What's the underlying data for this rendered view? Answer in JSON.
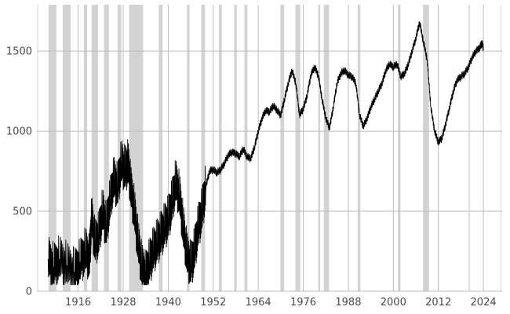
{
  "chart_data": {
    "type": "line",
    "title": "",
    "xlabel": "",
    "ylabel": "",
    "xlim": [
      1905,
      2029
    ],
    "ylim": [
      0,
      1790
    ],
    "grid": true,
    "x_ticks": [
      "1916",
      "1928",
      "1940",
      "1952",
      "1964",
      "1976",
      "1988",
      "2000",
      "2012",
      "2024"
    ],
    "y_ticks": [
      "0",
      "500",
      "1000",
      "1500"
    ],
    "shaded_periods": [
      [
        1908.1,
        1910.2
      ],
      [
        1911.9,
        1914.0
      ],
      [
        1917.5,
        1918.4
      ],
      [
        1919.6,
        1921.3
      ],
      [
        1922.9,
        1924.2
      ],
      [
        1926.5,
        1927.5
      ],
      [
        1929.6,
        1933.3
      ],
      [
        1937.5,
        1938.5
      ],
      [
        1945.0,
        1945.7
      ],
      [
        1948.8,
        1949.8
      ],
      [
        1953.5,
        1954.3
      ],
      [
        1957.6,
        1958.3
      ],
      [
        1960.3,
        1961.1
      ],
      [
        1969.9,
        1970.9
      ],
      [
        1973.9,
        1975.2
      ],
      [
        1980.0,
        1980.5
      ],
      [
        1981.5,
        1982.9
      ],
      [
        1990.5,
        1991.2
      ],
      [
        2001.2,
        2001.9
      ],
      [
        2007.9,
        2009.5
      ],
      [
        2020.1,
        2020.4
      ]
    ],
    "series": [
      {
        "name": "",
        "color": "#000000",
        "points": [
          [
            1908.0,
            200
          ],
          [
            1909.5,
            150
          ],
          [
            1911.0,
            200
          ],
          [
            1913.0,
            160
          ],
          [
            1915.0,
            120
          ],
          [
            1916.5,
            180
          ],
          [
            1918.0,
            250
          ],
          [
            1919.0,
            200
          ],
          [
            1919.6,
            460
          ],
          [
            1920.5,
            300
          ],
          [
            1921.5,
            350
          ],
          [
            1922.5,
            500
          ],
          [
            1923.5,
            400
          ],
          [
            1924.5,
            560
          ],
          [
            1925.5,
            700
          ],
          [
            1926.5,
            650
          ],
          [
            1927.5,
            800
          ],
          [
            1928.5,
            760
          ],
          [
            1929.3,
            800
          ],
          [
            1930.0,
            650
          ],
          [
            1931.0,
            500
          ],
          [
            1932.0,
            300
          ],
          [
            1933.0,
            150
          ],
          [
            1934.0,
            100
          ],
          [
            1935.0,
            180
          ],
          [
            1936.0,
            250
          ],
          [
            1937.0,
            300
          ],
          [
            1938.0,
            350
          ],
          [
            1939.0,
            400
          ],
          [
            1940.0,
            450
          ],
          [
            1941.0,
            550
          ],
          [
            1942.0,
            680
          ],
          [
            1943.0,
            600
          ],
          [
            1944.0,
            400
          ],
          [
            1945.0,
            230
          ],
          [
            1946.0,
            160
          ],
          [
            1947.0,
            250
          ],
          [
            1948.0,
            400
          ],
          [
            1949.0,
            500
          ],
          [
            1950.0,
            650
          ],
          [
            1951.0,
            750
          ],
          [
            1952.0,
            760
          ],
          [
            1953.0,
            740
          ],
          [
            1954.0,
            760
          ],
          [
            1955.0,
            800
          ],
          [
            1956.0,
            850
          ],
          [
            1957.0,
            870
          ],
          [
            1958.0,
            860
          ],
          [
            1959.0,
            840
          ],
          [
            1960.0,
            890
          ],
          [
            1961.0,
            840
          ],
          [
            1962.0,
            830
          ],
          [
            1963.0,
            900
          ],
          [
            1964.0,
            1000
          ],
          [
            1965.0,
            1080
          ],
          [
            1966.0,
            1130
          ],
          [
            1967.0,
            1120
          ],
          [
            1968.0,
            1160
          ],
          [
            1969.0,
            1130
          ],
          [
            1970.0,
            1100
          ],
          [
            1971.0,
            1200
          ],
          [
            1972.0,
            1300
          ],
          [
            1973.0,
            1380
          ],
          [
            1974.0,
            1300
          ],
          [
            1975.0,
            1100
          ],
          [
            1976.0,
            1140
          ],
          [
            1977.0,
            1220
          ],
          [
            1978.0,
            1350
          ],
          [
            1979.0,
            1400
          ],
          [
            1980.0,
            1350
          ],
          [
            1981.0,
            1200
          ],
          [
            1982.0,
            1080
          ],
          [
            1983.0,
            1020
          ],
          [
            1984.0,
            1150
          ],
          [
            1985.0,
            1300
          ],
          [
            1986.0,
            1360
          ],
          [
            1987.0,
            1380
          ],
          [
            1988.0,
            1350
          ],
          [
            1989.0,
            1340
          ],
          [
            1990.0,
            1300
          ],
          [
            1991.0,
            1100
          ],
          [
            1992.0,
            1030
          ],
          [
            1993.0,
            1080
          ],
          [
            1994.0,
            1150
          ],
          [
            1995.0,
            1200
          ],
          [
            1996.0,
            1250
          ],
          [
            1997.0,
            1300
          ],
          [
            1998.0,
            1380
          ],
          [
            1999.0,
            1420
          ],
          [
            2000.0,
            1400
          ],
          [
            2001.0,
            1420
          ],
          [
            2002.0,
            1340
          ],
          [
            2003.0,
            1360
          ],
          [
            2004.0,
            1420
          ],
          [
            2005.0,
            1500
          ],
          [
            2006.0,
            1580
          ],
          [
            2007.0,
            1680
          ],
          [
            2008.0,
            1560
          ],
          [
            2009.0,
            1450
          ],
          [
            2010.0,
            1150
          ],
          [
            2011.0,
            1000
          ],
          [
            2012.0,
            930
          ],
          [
            2013.0,
            960
          ],
          [
            2014.0,
            1050
          ],
          [
            2015.0,
            1150
          ],
          [
            2016.0,
            1250
          ],
          [
            2017.0,
            1320
          ],
          [
            2018.0,
            1340
          ],
          [
            2019.0,
            1360
          ],
          [
            2020.0,
            1400
          ],
          [
            2021.0,
            1460
          ],
          [
            2022.0,
            1500
          ],
          [
            2023.0,
            1520
          ],
          [
            2023.6,
            1550
          ],
          [
            2024.0,
            1520
          ]
        ]
      }
    ]
  }
}
